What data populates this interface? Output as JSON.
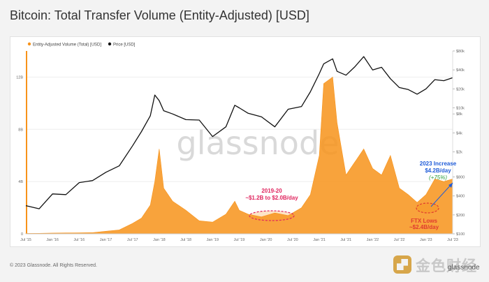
{
  "page": {
    "title": "Bitcoin: Total Transfer Volume (Entity-Adjusted) [USD]",
    "footer": "© 2023 Glassnode. All Rights Reserved.",
    "watermark": "glassnode",
    "brand_logo_text": "金色财经",
    "brand_sub": "glassnode"
  },
  "annotations": {
    "a2019_line1": "2019-20",
    "a2019_line2": "~$1.2B to $2.0B/day",
    "a2023_line1": "2023 Increase",
    "a2023_line2": "$4.2B/day",
    "a2023_line3": "(+75%)",
    "aftx_line1": "FTX Lows",
    "aftx_line2": "~$2.4B/day"
  },
  "colors": {
    "volume": "#f7931a",
    "price": "#111111",
    "highlight_2019": "#e0245e",
    "highlight_2023": "#1e5bd8",
    "increase_pct": "#2e9e3e",
    "ftx": "#e03a2f"
  },
  "chart_data": {
    "type": "area",
    "legend": [
      "Entity-Adjusted Volume (Total) [USD]",
      "Price [USD]"
    ],
    "legend_position": "top-left",
    "x_ticks": [
      "Jul '15",
      "Jan '16",
      "Jul '16",
      "Jan '17",
      "Jul '17",
      "Jan '18",
      "Jul '18",
      "Jan '19",
      "Jul '19",
      "Jan '20",
      "Jul '20",
      "Jan '21",
      "Jul '21",
      "Jan '22",
      "Jul '22",
      "Jan '23",
      "Jul '23"
    ],
    "y_left_ticks": [
      "0",
      "4B",
      "8B",
      "12B"
    ],
    "y_left_range": [
      0,
      14
    ],
    "y_right_ticks": [
      "$100",
      "$200",
      "$400",
      "$800",
      "$2k",
      "$4k",
      "$8k",
      "$10k",
      "$20k",
      "$40k",
      "$80k"
    ],
    "y_right_scale": "log",
    "series": [
      {
        "name": "Entity-Adjusted Volume (Total) [USD]",
        "axis": "left",
        "unit": "billion USD",
        "x": [
          "2015-07",
          "2015-10",
          "2016-01",
          "2016-04",
          "2016-07",
          "2016-10",
          "2017-01",
          "2017-04",
          "2017-07",
          "2017-09",
          "2017-11",
          "2017-12",
          "2018-01",
          "2018-02",
          "2018-04",
          "2018-07",
          "2018-10",
          "2019-01",
          "2019-04",
          "2019-06",
          "2019-07",
          "2019-09",
          "2019-12",
          "2020-03",
          "2020-06",
          "2020-09",
          "2020-11",
          "2021-01",
          "2021-02",
          "2021-04",
          "2021-05",
          "2021-07",
          "2021-09",
          "2021-11",
          "2022-01",
          "2022-03",
          "2022-05",
          "2022-07",
          "2022-09",
          "2022-11",
          "2023-01",
          "2023-03",
          "2023-05",
          "2023-07"
        ],
        "values": [
          0.03,
          0.04,
          0.06,
          0.07,
          0.08,
          0.09,
          0.2,
          0.3,
          0.8,
          1.2,
          2.2,
          4.0,
          6.5,
          3.5,
          2.5,
          1.8,
          1.0,
          0.9,
          1.5,
          2.5,
          1.8,
          1.5,
          1.3,
          1.6,
          1.4,
          2.0,
          3.0,
          6.0,
          11.5,
          12.0,
          8.5,
          4.5,
          5.5,
          6.5,
          5.0,
          4.5,
          6.0,
          3.5,
          3.0,
          2.4,
          3.0,
          4.2,
          4.0,
          4.2
        ]
      },
      {
        "name": "Price [USD]",
        "axis": "right",
        "unit": "USD",
        "x": [
          "2015-07",
          "2015-10",
          "2016-01",
          "2016-04",
          "2016-07",
          "2016-10",
          "2017-01",
          "2017-04",
          "2017-07",
          "2017-09",
          "2017-11",
          "2017-12",
          "2018-01",
          "2018-02",
          "2018-04",
          "2018-07",
          "2018-10",
          "2019-01",
          "2019-04",
          "2019-06",
          "2019-07",
          "2019-09",
          "2019-12",
          "2020-03",
          "2020-06",
          "2020-09",
          "2020-11",
          "2021-01",
          "2021-02",
          "2021-04",
          "2021-05",
          "2021-07",
          "2021-09",
          "2021-11",
          "2022-01",
          "2022-03",
          "2022-05",
          "2022-07",
          "2022-09",
          "2022-11",
          "2023-01",
          "2023-03",
          "2023-05",
          "2023-07"
        ],
        "values": [
          280,
          250,
          430,
          420,
          650,
          700,
          950,
          1200,
          2500,
          4200,
          7500,
          16000,
          13000,
          9000,
          8000,
          6500,
          6400,
          3500,
          5000,
          11000,
          10000,
          8200,
          7200,
          5000,
          9500,
          10500,
          18000,
          35000,
          50000,
          60000,
          38000,
          33000,
          45000,
          65000,
          40000,
          44000,
          29000,
          21000,
          19500,
          16500,
          20000,
          28000,
          27000,
          30000
        ]
      }
    ]
  }
}
